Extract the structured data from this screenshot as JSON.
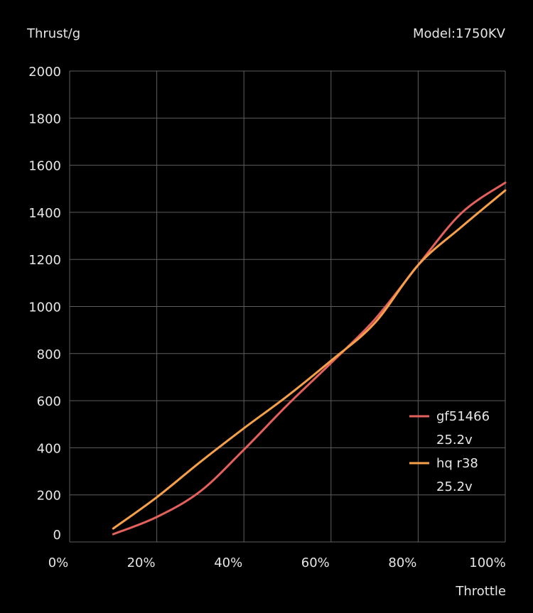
{
  "chart_data": {
    "type": "line",
    "title": "",
    "ylabel": "Thrust/g",
    "xlabel": "Throttle",
    "model_label": "Model:1750KV",
    "xlim": [
      0,
      100
    ],
    "ylim": [
      0,
      2000
    ],
    "grid": true,
    "legend_position": "right",
    "x_ticks": [
      "0%",
      "20%",
      "40%",
      "60%",
      "80%",
      "100%"
    ],
    "y_ticks": [
      "0",
      "200",
      "400",
      "600",
      "800",
      "1000",
      "1200",
      "1400",
      "1600",
      "1800",
      "2000"
    ],
    "x": [
      10,
      20,
      30,
      40,
      50,
      60,
      70,
      80,
      90,
      100
    ],
    "series": [
      {
        "name": "gf51466",
        "sub": "25.2v",
        "color": "#e3605c",
        "values": [
          33,
          106,
          215,
          392,
          582,
          760,
          944,
          1176,
          1398,
          1526
        ]
      },
      {
        "name": "hq r38",
        "sub": "25.2v",
        "color": "#f7a04a",
        "values": [
          57,
          190,
          340,
          483,
          620,
          770,
          929,
          1176,
          1339,
          1493
        ]
      }
    ]
  }
}
